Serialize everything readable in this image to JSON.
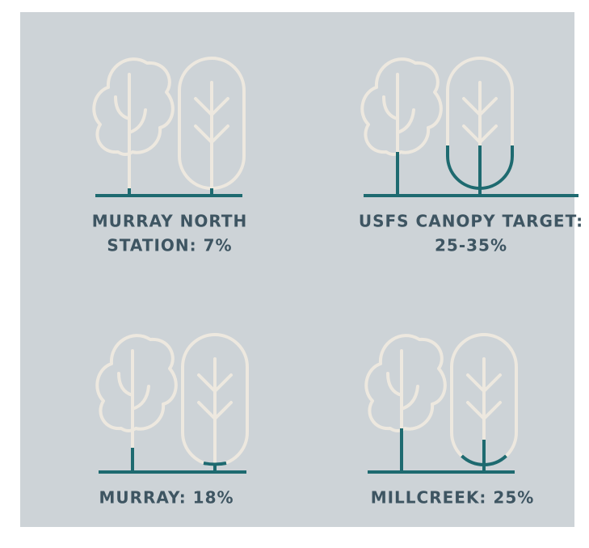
{
  "panels": [
    {
      "label": [
        "MURRAY NORTH",
        "STATION: 7%"
      ]
    },
    {
      "label": [
        "USFS CANOPY TARGET:",
        "25-35%"
      ]
    },
    {
      "label": [
        "MURRAY: 18%"
      ]
    },
    {
      "label": [
        "MILLCREEK: 25%"
      ]
    }
  ]
}
